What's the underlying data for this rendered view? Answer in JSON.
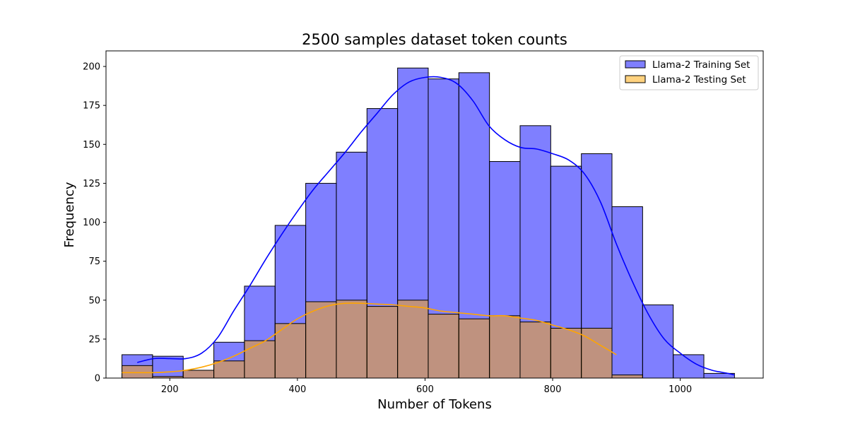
{
  "chart_data": {
    "type": "bar",
    "title": "2500 samples dataset token counts",
    "xlabel": "Number of Tokens",
    "ylabel": "Frequency",
    "xlim": [
      100,
      1130
    ],
    "ylim": [
      0,
      210
    ],
    "xticks": [
      200,
      400,
      600,
      800,
      1000
    ],
    "yticks": [
      0,
      25,
      50,
      75,
      100,
      125,
      150,
      175,
      200
    ],
    "legend_position": "top-right",
    "bin_edges": [
      125,
      173,
      221,
      269,
      317,
      365,
      413,
      461,
      509,
      557,
      605,
      653,
      701,
      749,
      797,
      845,
      893,
      941,
      989,
      1037,
      1085
    ],
    "series": [
      {
        "name": "Llama-2 Training Set",
        "color": "#0000ff",
        "fill": "#8080ff",
        "values": [
          15,
          14,
          5,
          23,
          59,
          98,
          125,
          145,
          173,
          199,
          192,
          196,
          139,
          162,
          136,
          144,
          110,
          47,
          15,
          3
        ],
        "kde": {
          "x": [
            149,
            175,
            200,
            225,
            250,
            275,
            300,
            325,
            350,
            375,
            400,
            425,
            450,
            475,
            500,
            525,
            550,
            575,
            600,
            625,
            650,
            675,
            700,
            725,
            750,
            775,
            800,
            825,
            850,
            875,
            900,
            925,
            950,
            975,
            1000,
            1025,
            1050,
            1075,
            1085
          ],
          "y": [
            10,
            12.5,
            12.5,
            12.5,
            16,
            26,
            43,
            59,
            76,
            92,
            107,
            121,
            133,
            145,
            158,
            170,
            182,
            190,
            193,
            193,
            189,
            178,
            162,
            153,
            148,
            147,
            144,
            140,
            131,
            113,
            86,
            62,
            41,
            25,
            16,
            9,
            5,
            3,
            2
          ]
        }
      },
      {
        "name": "Llama-2 Testing Set",
        "color": "#ffa500",
        "fill": "#ffd280",
        "values": [
          8,
          1,
          5,
          11,
          24,
          35,
          49,
          50,
          46,
          50,
          41,
          38,
          40,
          36,
          32,
          32,
          2,
          0,
          0,
          0
        ],
        "kde": {
          "x": [
            125,
            150,
            175,
            200,
            225,
            250,
            275,
            300,
            325,
            350,
            375,
            400,
            425,
            450,
            475,
            500,
            525,
            550,
            575,
            600,
            625,
            650,
            675,
            700,
            725,
            750,
            775,
            800,
            825,
            850,
            875,
            900
          ],
          "y": [
            3.5,
            3.5,
            3.5,
            4,
            5,
            7,
            10,
            14,
            19,
            24,
            31,
            38,
            43,
            46.5,
            48,
            48,
            47.5,
            47,
            46,
            45,
            43,
            42,
            41,
            40,
            40,
            38.5,
            37,
            34,
            31,
            27,
            21,
            15
          ]
        }
      }
    ]
  }
}
